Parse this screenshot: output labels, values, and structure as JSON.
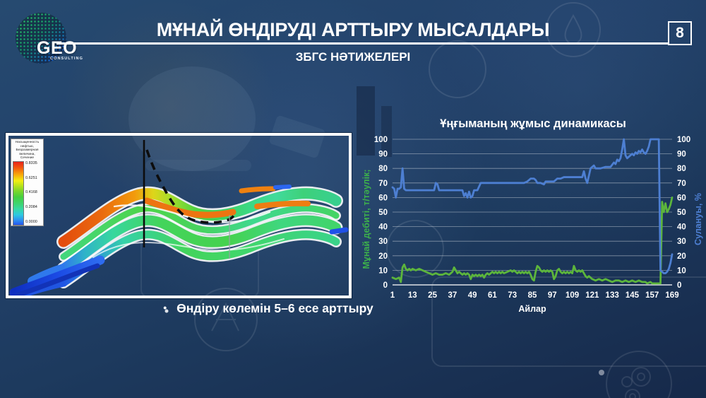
{
  "slide": {
    "logo": {
      "text": "GEO",
      "subtext": "CONSULTING"
    },
    "page_number": "8",
    "title": "МҰНАЙ ӨНДІРУДІ АРТТЫРУ МЫСАЛДАРЫ",
    "subtitle": "ЗБГС НӘТИЖЕЛЕРІ",
    "bullet_text": "Өндіру көлемін 5–6 есе арттыру"
  },
  "geomodel": {
    "legend": {
      "title_lines": [
        "Насыщенность",
        "нефтью,",
        "Безразмерная",
        "величина,",
        "Сечение"
      ],
      "values": [
        "0.8335",
        "0.6251",
        "0.4168",
        "0.2084",
        "0.0000"
      ]
    }
  },
  "chart_data": {
    "type": "line",
    "title": "Ұңғыманың жұмыс динамикасы",
    "xlabel": "Айлар",
    "xlim": [
      1,
      169
    ],
    "ylim": [
      0,
      100
    ],
    "x_ticks": [
      1,
      13,
      25,
      37,
      49,
      61,
      73,
      85,
      97,
      109,
      121,
      133,
      145,
      157,
      169
    ],
    "y_ticks": [
      0,
      10,
      20,
      30,
      40,
      50,
      60,
      70,
      80,
      90,
      100
    ],
    "grid": "horizontal",
    "legend_position": "none",
    "axes": {
      "left": {
        "label": "Мұнай дебиті, т/тәулік;",
        "color": "#3db14b"
      },
      "right": {
        "label": "Сулануы, %",
        "color": "#4e80d4"
      }
    },
    "series": [
      {
        "name": "Мұнай дебиті, т/тәулік",
        "axis": "left",
        "color": "#5cb53c",
        "points": [
          [
            1,
            5
          ],
          [
            3,
            4
          ],
          [
            5,
            5
          ],
          [
            6,
            2
          ],
          [
            7,
            12
          ],
          [
            8,
            14
          ],
          [
            9,
            11
          ],
          [
            10,
            10
          ],
          [
            11,
            11
          ],
          [
            12,
            10
          ],
          [
            13,
            11
          ],
          [
            15,
            10
          ],
          [
            17,
            11
          ],
          [
            19,
            10
          ],
          [
            21,
            9
          ],
          [
            23,
            8
          ],
          [
            25,
            7
          ],
          [
            27,
            8
          ],
          [
            29,
            7
          ],
          [
            31,
            7
          ],
          [
            33,
            8
          ],
          [
            35,
            7
          ],
          [
            36,
            8
          ],
          [
            37,
            9
          ],
          [
            38,
            12
          ],
          [
            39,
            10
          ],
          [
            40,
            8
          ],
          [
            41,
            9
          ],
          [
            42,
            8
          ],
          [
            43,
            7
          ],
          [
            44,
            8
          ],
          [
            45,
            7
          ],
          [
            46,
            8
          ],
          [
            47,
            7
          ],
          [
            48,
            4
          ],
          [
            49,
            7
          ],
          [
            50,
            6
          ],
          [
            51,
            7
          ],
          [
            52,
            6
          ],
          [
            53,
            7
          ],
          [
            54,
            6
          ],
          [
            55,
            7
          ],
          [
            56,
            5
          ],
          [
            57,
            7
          ],
          [
            58,
            8
          ],
          [
            59,
            7
          ],
          [
            60,
            8
          ],
          [
            61,
            9
          ],
          [
            62,
            8
          ],
          [
            63,
            9
          ],
          [
            64,
            8
          ],
          [
            65,
            9
          ],
          [
            66,
            8
          ],
          [
            67,
            9
          ],
          [
            68,
            8
          ],
          [
            70,
            9
          ],
          [
            72,
            10
          ],
          [
            73,
            9
          ],
          [
            74,
            10
          ],
          [
            75,
            9
          ],
          [
            76,
            8
          ],
          [
            77,
            9
          ],
          [
            78,
            8
          ],
          [
            79,
            9
          ],
          [
            80,
            8
          ],
          [
            81,
            9
          ],
          [
            82,
            8
          ],
          [
            83,
            9
          ],
          [
            84,
            7
          ],
          [
            85,
            4
          ],
          [
            86,
            3
          ],
          [
            87,
            9
          ],
          [
            88,
            13
          ],
          [
            89,
            12
          ],
          [
            90,
            10
          ],
          [
            91,
            9
          ],
          [
            92,
            10
          ],
          [
            93,
            9
          ],
          [
            94,
            10
          ],
          [
            95,
            9
          ],
          [
            96,
            10
          ],
          [
            97,
            9
          ],
          [
            98,
            4
          ],
          [
            99,
            6
          ],
          [
            100,
            10
          ],
          [
            101,
            11
          ],
          [
            102,
            9
          ],
          [
            103,
            8
          ],
          [
            104,
            9
          ],
          [
            105,
            8
          ],
          [
            106,
            9
          ],
          [
            107,
            8
          ],
          [
            108,
            9
          ],
          [
            109,
            8
          ],
          [
            110,
            13
          ],
          [
            111,
            10
          ],
          [
            112,
            9
          ],
          [
            113,
            10
          ],
          [
            114,
            9
          ],
          [
            115,
            10
          ],
          [
            116,
            8
          ],
          [
            117,
            6
          ],
          [
            118,
            5
          ],
          [
            119,
            6
          ],
          [
            120,
            5
          ],
          [
            121,
            4
          ],
          [
            123,
            3
          ],
          [
            125,
            4
          ],
          [
            127,
            3
          ],
          [
            129,
            4
          ],
          [
            131,
            3
          ],
          [
            133,
            2
          ],
          [
            135,
            3
          ],
          [
            137,
            3
          ],
          [
            139,
            2
          ],
          [
            141,
            3
          ],
          [
            143,
            2
          ],
          [
            145,
            3
          ],
          [
            147,
            2
          ],
          [
            149,
            3
          ],
          [
            151,
            2
          ],
          [
            153,
            2
          ],
          [
            154,
            1
          ],
          [
            156,
            2
          ],
          [
            157,
            1
          ],
          [
            159,
            1
          ],
          [
            161,
            1
          ],
          [
            162,
            1
          ],
          [
            163,
            57
          ],
          [
            164,
            50
          ],
          [
            165,
            56
          ],
          [
            166,
            50
          ],
          [
            167,
            52
          ],
          [
            168,
            55
          ],
          [
            169,
            60
          ]
        ]
      },
      {
        "name": "Сулануы, %",
        "axis": "right",
        "color": "#4d7fd2",
        "points": [
          [
            1,
            67
          ],
          [
            2,
            66
          ],
          [
            3,
            60
          ],
          [
            4,
            66
          ],
          [
            5,
            66
          ],
          [
            6,
            67
          ],
          [
            7,
            80
          ],
          [
            8,
            66
          ],
          [
            9,
            65
          ],
          [
            14,
            65
          ],
          [
            20,
            65
          ],
          [
            22,
            65
          ],
          [
            26,
            65
          ],
          [
            27,
            70
          ],
          [
            28,
            69
          ],
          [
            29,
            65
          ],
          [
            33,
            65
          ],
          [
            38,
            65
          ],
          [
            43,
            65
          ],
          [
            44,
            61
          ],
          [
            45,
            63
          ],
          [
            46,
            60
          ],
          [
            47,
            64
          ],
          [
            48,
            60
          ],
          [
            49,
            61
          ],
          [
            50,
            65
          ],
          [
            52,
            65
          ],
          [
            54,
            70
          ],
          [
            76,
            70
          ],
          [
            80,
            70
          ],
          [
            82,
            71
          ],
          [
            84,
            73
          ],
          [
            86,
            73
          ],
          [
            87,
            72
          ],
          [
            88,
            70
          ],
          [
            90,
            70
          ],
          [
            92,
            69
          ],
          [
            93,
            71
          ],
          [
            98,
            71
          ],
          [
            100,
            73
          ],
          [
            102,
            73
          ],
          [
            104,
            74
          ],
          [
            108,
            74
          ],
          [
            112,
            74
          ],
          [
            115,
            74
          ],
          [
            116,
            78
          ],
          [
            117,
            73
          ],
          [
            118,
            70
          ],
          [
            119,
            75
          ],
          [
            120,
            80
          ],
          [
            122,
            82
          ],
          [
            123,
            80
          ],
          [
            126,
            80
          ],
          [
            129,
            81
          ],
          [
            132,
            81
          ],
          [
            134,
            84
          ],
          [
            135,
            83
          ],
          [
            136,
            86
          ],
          [
            137,
            85
          ],
          [
            138,
            87
          ],
          [
            139,
            93
          ],
          [
            140,
            100
          ],
          [
            141,
            89
          ],
          [
            142,
            87
          ],
          [
            143,
            88
          ],
          [
            145,
            90
          ],
          [
            146,
            89
          ],
          [
            147,
            91
          ],
          [
            148,
            90
          ],
          [
            149,
            92
          ],
          [
            150,
            91
          ],
          [
            151,
            93
          ],
          [
            152,
            91
          ],
          [
            153,
            90
          ],
          [
            154,
            92
          ],
          [
            155,
            95
          ],
          [
            156,
            100
          ],
          [
            161,
            100
          ],
          [
            162,
            10
          ],
          [
            163,
            9
          ],
          [
            164,
            8
          ],
          [
            165,
            8
          ],
          [
            166,
            9
          ],
          [
            167,
            11
          ],
          [
            168,
            15
          ],
          [
            169,
            21
          ]
        ]
      }
    ]
  }
}
